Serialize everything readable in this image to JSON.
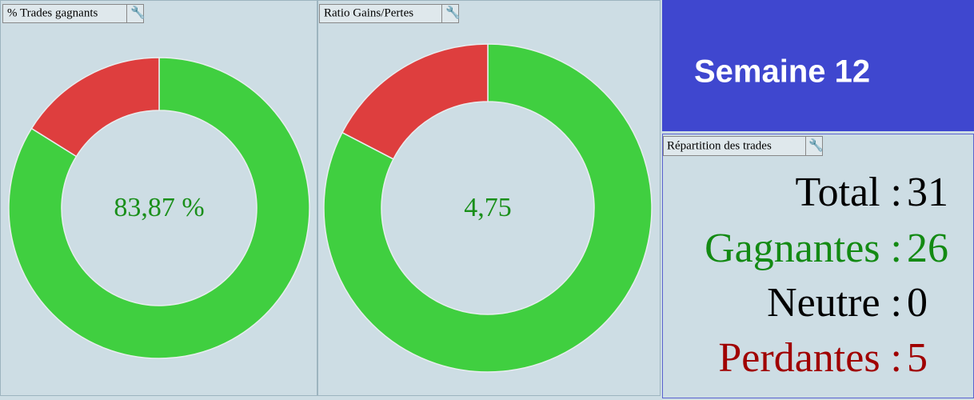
{
  "chart_data": [
    {
      "type": "donut",
      "title": "% Trades gagnants",
      "values": [
        83.87,
        16.13
      ],
      "colors": [
        "#40cf40",
        "#de3e3e"
      ],
      "center_label": "83,87 %"
    },
    {
      "type": "donut",
      "title": "Ratio Gains/Pertes",
      "values": [
        4.75,
        1
      ],
      "colors": [
        "#40cf40",
        "#de3e3e"
      ],
      "center_label": "4,75"
    }
  ],
  "header": {
    "title": "Semaine 12"
  },
  "summary": {
    "title": "Répartition des trades",
    "rows": [
      {
        "label": "Total :",
        "value": 31,
        "color": "#000000"
      },
      {
        "label": "Gagnantes :",
        "value": 26,
        "color": "#138a13"
      },
      {
        "label": "Neutre :",
        "value": 0,
        "color": "#000000"
      },
      {
        "label": "Perdantes :",
        "value": 5,
        "color": "#a00000"
      }
    ]
  }
}
